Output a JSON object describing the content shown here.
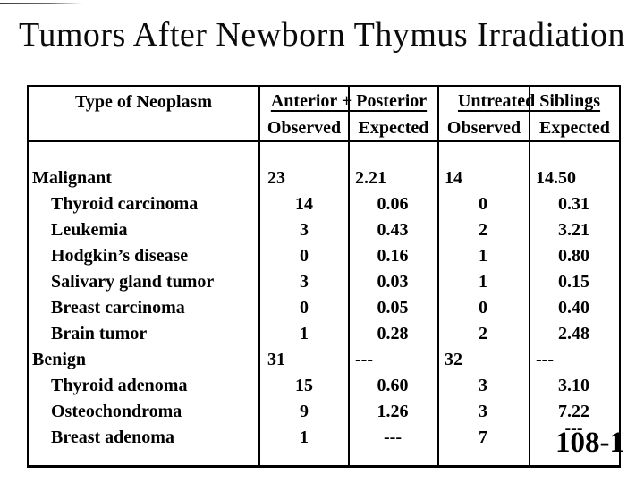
{
  "title": "Tumors After Newborn Thymus Irradiation",
  "page_label": "108-1",
  "colors": {
    "text": "#000000",
    "background": "#ffffff",
    "border": "#000000"
  },
  "table": {
    "col1_header": "Type of Neoplasm",
    "group_headers": {
      "group1": "Anterior + Posterior",
      "group2": "Untreated Siblings"
    },
    "subheaders": {
      "g1_observed": "Observed",
      "g1_expected": "Expected",
      "g2_observed": "Observed",
      "g2_expected": "Expected"
    },
    "rows": [
      {
        "name": "Malignant",
        "type": "category",
        "obs_ap": "23",
        "exp_ap": "2.21",
        "obs_us": "14",
        "exp_us": "14.50"
      },
      {
        "name": "Thyroid carcinoma",
        "type": "sub",
        "obs_ap": "14",
        "exp_ap": "0.06",
        "obs_us": "0",
        "exp_us": "0.31"
      },
      {
        "name": "Leukemia",
        "type": "sub",
        "obs_ap": "3",
        "exp_ap": "0.43",
        "obs_us": "2",
        "exp_us": "3.21"
      },
      {
        "name": "Hodgkin’s disease",
        "type": "sub",
        "obs_ap": "0",
        "exp_ap": "0.16",
        "obs_us": "1",
        "exp_us": "0.80"
      },
      {
        "name": "Salivary gland tumor",
        "type": "sub",
        "obs_ap": "3",
        "exp_ap": "0.03",
        "obs_us": "1",
        "exp_us": "0.15"
      },
      {
        "name": "Breast carcinoma",
        "type": "sub",
        "obs_ap": "0",
        "exp_ap": "0.05",
        "obs_us": "0",
        "exp_us": "0.40"
      },
      {
        "name": "Brain tumor",
        "type": "sub",
        "obs_ap": "1",
        "exp_ap": "0.28",
        "obs_us": "2",
        "exp_us": "2.48"
      },
      {
        "name": "Benign",
        "type": "category",
        "obs_ap": "31",
        "exp_ap": "---",
        "obs_us": "32",
        "exp_us": "---"
      },
      {
        "name": "Thyroid adenoma",
        "type": "sub",
        "obs_ap": "15",
        "exp_ap": "0.60",
        "obs_us": "3",
        "exp_us": "3.10"
      },
      {
        "name": "Osteochondroma",
        "type": "sub",
        "obs_ap": "9",
        "exp_ap": "1.26",
        "obs_us": "3",
        "exp_us": "7.22"
      },
      {
        "name": "Breast adenoma",
        "type": "sub",
        "obs_ap": "1",
        "exp_ap": "---",
        "obs_us": "7",
        "exp_us": "---"
      }
    ]
  }
}
